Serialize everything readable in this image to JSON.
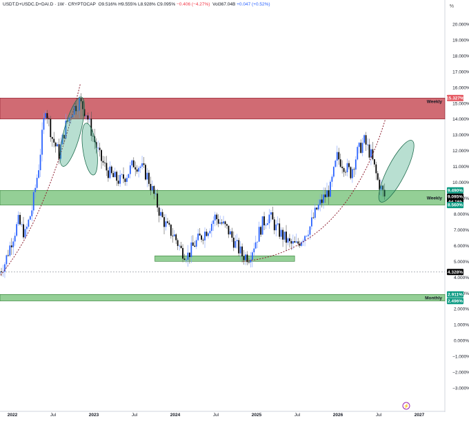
{
  "header": {
    "symbol": "USDT.D+USDC.D+DAI.D · 1W · CRYPTOCAP",
    "open": "O9.516%",
    "high": "H9.555%",
    "low": "L8.928%",
    "close": "C9.095%",
    "change": "−0.406 (−4.27%)",
    "volume": "Vol367.04B",
    "volume_change": "+0.047 (+0.52%)",
    "percent_button": "%"
  },
  "colors": {
    "up": "#2962ff",
    "down": "#000000",
    "weekly_resistance": "#c8515a",
    "support_zone": "#4caf50",
    "ellipse": "#33a37a",
    "trendline": "#8b1a2b",
    "tag_red": "#e4535c",
    "tag_green": "#089981",
    "tag_black": "#000000"
  },
  "chart_data": {
    "type": "candlestick",
    "x_axis": {
      "labels": [
        "2022",
        "Jul",
        "2023",
        "Jul",
        "2024",
        "Jul",
        "2025",
        "Jul",
        "2026",
        "Jul",
        "2027"
      ],
      "range": [
        "2021-11",
        "2027-01"
      ]
    },
    "y_axis": {
      "unit": "%",
      "ticks": [
        "20.000%",
        "19.000%",
        "18.000%",
        "17.000%",
        "16.000%",
        "15.000%",
        "14.000%",
        "13.000%",
        "12.000%",
        "11.000%",
        "10.000%",
        "9.000%",
        "8.000%",
        "7.000%",
        "6.000%",
        "5.000%",
        "4.000%",
        "3.000%",
        "2.000%",
        "1.000%",
        "0.000%",
        "−1.000%",
        "−2.000%",
        "−3.000%"
      ],
      "range": [
        -3.3,
        20.6
      ],
      "position": "right"
    },
    "series": [
      {
        "kind": "candles",
        "approximate_close_path": [
          [
            "2021-11",
            4.2
          ],
          [
            "2021-12",
            4.9
          ],
          [
            "2022-01",
            6.3
          ],
          [
            "2022-02",
            7.5
          ],
          [
            "2022-03",
            6.7
          ],
          [
            "2022-04",
            8.3
          ],
          [
            "2022-05",
            11.0
          ],
          [
            "2022-06",
            14.8
          ],
          [
            "2022-07",
            12.8
          ],
          [
            "2022-08",
            11.8
          ],
          [
            "2022-09",
            13.6
          ],
          [
            "2022-10",
            14.6
          ],
          [
            "2022-11",
            15.1
          ],
          [
            "2022-12",
            14.4
          ],
          [
            "2023-01",
            12.9
          ],
          [
            "2023-02",
            11.6
          ],
          [
            "2023-03",
            10.8
          ],
          [
            "2023-04",
            10.3
          ],
          [
            "2023-05",
            10.1
          ],
          [
            "2023-06",
            10.5
          ],
          [
            "2023-07",
            11.2
          ],
          [
            "2023-08",
            11.0
          ],
          [
            "2023-09",
            10.4
          ],
          [
            "2023-10",
            9.2
          ],
          [
            "2023-11",
            7.9
          ],
          [
            "2023-12",
            7.1
          ],
          [
            "2024-01",
            6.6
          ],
          [
            "2024-02",
            5.7
          ],
          [
            "2024-03",
            5.4
          ],
          [
            "2024-04",
            6.1
          ],
          [
            "2024-05",
            6.6
          ],
          [
            "2024-06",
            7.1
          ],
          [
            "2024-07",
            7.8
          ],
          [
            "2024-08",
            7.4
          ],
          [
            "2024-09",
            6.9
          ],
          [
            "2024-10",
            6.1
          ],
          [
            "2024-11",
            5.4
          ],
          [
            "2024-12",
            5.3
          ],
          [
            "2025-01",
            6.3
          ],
          [
            "2025-02",
            7.4
          ],
          [
            "2025-03",
            7.9
          ],
          [
            "2025-04",
            7.1
          ],
          [
            "2025-05",
            6.6
          ],
          [
            "2025-06",
            6.1
          ],
          [
            "2025-07",
            6.0
          ],
          [
            "2025-08",
            6.6
          ],
          [
            "2025-09",
            7.2
          ],
          [
            "2025-10",
            8.3
          ],
          [
            "2025-11",
            9.0
          ],
          [
            "2025-12",
            9.6
          ],
          [
            "2026-01",
            11.6
          ],
          [
            "2026-02",
            11.1
          ],
          [
            "2026-03",
            10.6
          ],
          [
            "2026-04",
            11.9
          ],
          [
            "2026-05",
            12.6
          ],
          [
            "2026-06",
            11.7
          ],
          [
            "2026-07",
            10.1
          ],
          [
            "2026-08",
            9.1
          ]
        ]
      }
    ],
    "zones": [
      {
        "label": "Weekly",
        "from": 14.0,
        "to": 15.327,
        "color": "weekly_resistance"
      },
      {
        "label": "Weekly",
        "from": 8.56,
        "to": 9.49,
        "color": "support_zone"
      },
      {
        "label": "",
        "from": 5.0,
        "to": 5.35,
        "color": "support_zone"
      },
      {
        "label": "Monthly",
        "from": 2.496,
        "to": 2.911,
        "color": "support_zone"
      }
    ],
    "horizontal_lines": [
      {
        "value": 4.328,
        "style": "dotted"
      }
    ],
    "price_tags": [
      {
        "text": "15.327%",
        "value": 15.327,
        "color": "tag_red"
      },
      {
        "text": "9.490%",
        "value": 9.49,
        "color": "tag_green"
      },
      {
        "text": "9.095%",
        "value": 9.095,
        "color": "tag_black",
        "sub": "4d 16h"
      },
      {
        "text": "8.560%",
        "value": 8.56,
        "color": "tag_green"
      },
      {
        "text": "4.328%",
        "value": 4.328,
        "color": "tag_black"
      },
      {
        "text": "2.911%",
        "value": 2.911,
        "color": "tag_green"
      },
      {
        "text": "2.496%",
        "value": 2.496,
        "color": "tag_green"
      }
    ],
    "annotations": [
      "Weekly",
      "Weekly",
      "Monthly"
    ]
  }
}
